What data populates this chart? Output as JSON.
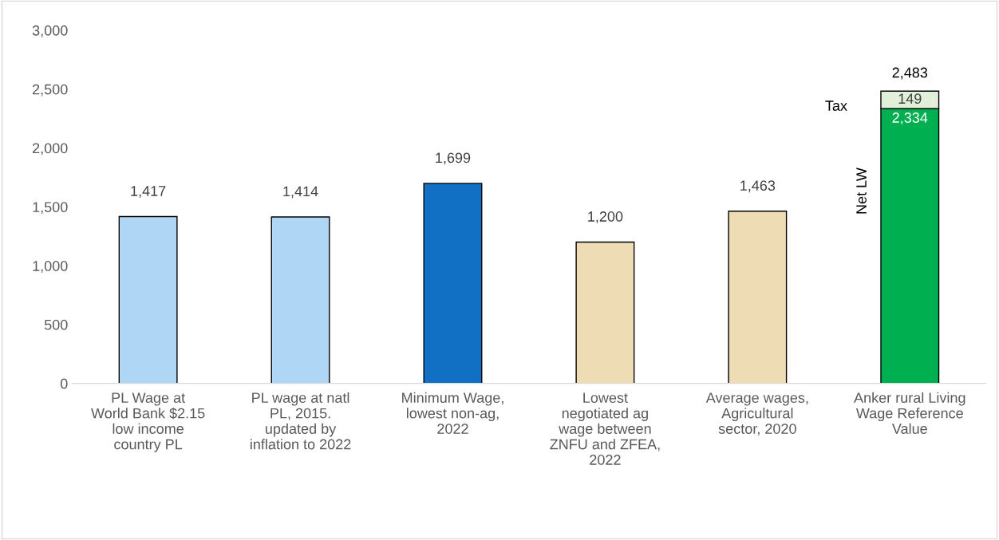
{
  "chart_data": {
    "type": "bar",
    "stacked": true,
    "categories": [
      "PL Wage at\nWorld Bank $2.15\nlow income\ncountry PL",
      "PL wage at natl\nPL, 2015.\nupdated by\ninflation to 2022",
      "Minimum Wage,\nlowest non-ag,\n2022",
      "Lowest\nnegotiated ag\nwage between\nZNFU and ZFEA,\n2022",
      "Average wages,\nAgricultural\nsector, 2020",
      "Anker rural Living\nWage Reference\nValue"
    ],
    "series": [
      {
        "name": "Net LW",
        "colors": [
          "#b0d6f5",
          "#b0d6f5",
          "#1170c4",
          "#eedcb4",
          "#eedcb4",
          "#00b050"
        ],
        "values": [
          1417,
          1414,
          1699,
          1200,
          1463,
          2334
        ],
        "value_labels": [
          "1,417",
          "1,414",
          "1,699",
          "1,200",
          "1,463",
          "2,334"
        ]
      },
      {
        "name": "Tax",
        "color": "#e2f0d9",
        "values": [
          null,
          null,
          null,
          null,
          null,
          149
        ],
        "value_labels": [
          null,
          null,
          null,
          null,
          null,
          "149"
        ]
      }
    ],
    "totals": [
      null,
      null,
      null,
      null,
      null,
      "2,483"
    ],
    "ylim": [
      0,
      3000
    ],
    "yticks": [
      {
        "value": 0,
        "label": "0"
      },
      {
        "value": 500,
        "label": "500"
      },
      {
        "value": 1000,
        "label": "1,000"
      },
      {
        "value": 1500,
        "label": "1,500"
      },
      {
        "value": 2000,
        "label": "2,000"
      },
      {
        "value": 2500,
        "label": "2,500"
      },
      {
        "value": 3000,
        "label": "3,000"
      }
    ],
    "grid": false,
    "legend": false
  }
}
